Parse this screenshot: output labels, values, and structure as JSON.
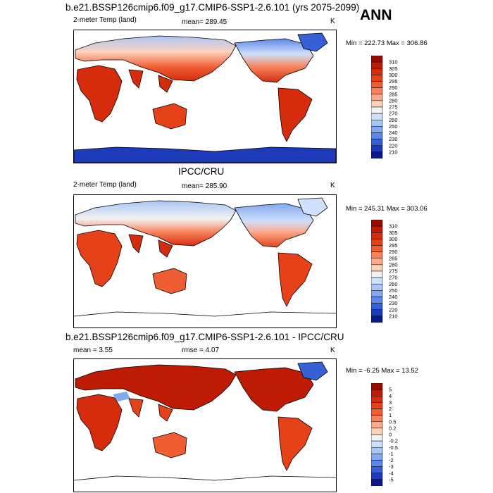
{
  "season": "ANN",
  "panels": [
    {
      "id": "model",
      "title": "b.e21.BSSP126cmip6.f09_g17.CMIP6-SSP1-2.6.101 (yrs 2075-2099)",
      "left_label": "2-meter Temp (land)",
      "center_label": "mean= 289.45",
      "units": "K",
      "minmax": "Min = 222.73 Max = 306.86",
      "colorbar_labels": [
        "310",
        "305",
        "300",
        "295",
        "290",
        "285",
        "280",
        "275",
        "270",
        "260",
        "250",
        "240",
        "230",
        "220",
        "210"
      ],
      "colorbar_colors": [
        "#9b0a02",
        "#be1b05",
        "#d52c0d",
        "#e54219",
        "#ef5d33",
        "#f7825a",
        "#fba98a",
        "#fdd2bd",
        "#f2f2f2",
        "#cfe0fb",
        "#a9c6f7",
        "#83a8f0",
        "#5c87e8",
        "#3760d6",
        "#1d3ab8",
        "#0a1a8e"
      ]
    },
    {
      "id": "obs",
      "title": "IPCC/CRU",
      "left_label": "2-meter Temp (land)",
      "center_label": "mean= 285.90",
      "units": "K",
      "minmax": "Min = 245.31 Max = 303.06",
      "colorbar_labels": [
        "310",
        "305",
        "300",
        "295",
        "290",
        "285",
        "280",
        "275",
        "270",
        "260",
        "250",
        "240",
        "230",
        "220",
        "210"
      ],
      "colorbar_colors": [
        "#9b0a02",
        "#be1b05",
        "#d52c0d",
        "#e54219",
        "#ef5d33",
        "#f7825a",
        "#fba98a",
        "#fdd2bd",
        "#f2f2f2",
        "#cfe0fb",
        "#a9c6f7",
        "#83a8f0",
        "#5c87e8",
        "#3760d6",
        "#1d3ab8",
        "#0a1a8e"
      ]
    },
    {
      "id": "diff",
      "title": "b.e21.BSSP126cmip6.f09_g17.CMIP6-SSP1-2.6.101 - IPCC/CRU",
      "left_label": "mean =   3.55",
      "center_label": "rmse =   4.07",
      "units": "K",
      "minmax": "Min =  -6.25 Max =  13.52",
      "colorbar_labels": [
        "5",
        "4",
        "3",
        "2",
        "1",
        "0.5",
        "0.2",
        "0",
        "-0.2",
        "-0.5",
        "-1",
        "-2",
        "-3",
        "-4",
        "-5"
      ],
      "colorbar_colors": [
        "#9b0a02",
        "#be1b05",
        "#d52c0d",
        "#e54219",
        "#ef5d33",
        "#f7825a",
        "#fba98a",
        "#fdd2bd",
        "#f2f2f2",
        "#cfe0fb",
        "#a9c6f7",
        "#83a8f0",
        "#5c87e8",
        "#3760d6",
        "#1d3ab8",
        "#0a1a8e"
      ]
    }
  ],
  "chart_data": [
    {
      "type": "heatmap",
      "title": "b.e21.BSSP126cmip6.f09_g17.CMIP6-SSP1-2.6.101 (yrs 2075-2099)",
      "variable": "2-meter Temp (land)",
      "units": "K",
      "mean": 289.45,
      "min": 222.73,
      "max": 306.86,
      "levels": [
        210,
        220,
        230,
        240,
        250,
        260,
        270,
        275,
        280,
        285,
        290,
        295,
        300,
        305,
        310
      ]
    },
    {
      "type": "heatmap",
      "title": "IPCC/CRU",
      "variable": "2-meter Temp (land)",
      "units": "K",
      "mean": 285.9,
      "min": 245.31,
      "max": 303.06,
      "levels": [
        210,
        220,
        230,
        240,
        250,
        260,
        270,
        275,
        280,
        285,
        290,
        295,
        300,
        305,
        310
      ]
    },
    {
      "type": "heatmap",
      "title": "b.e21.BSSP126cmip6.f09_g17.CMIP6-SSP1-2.6.101 - IPCC/CRU",
      "units": "K",
      "mean": 3.55,
      "rmse": 4.07,
      "min": -6.25,
      "max": 13.52,
      "levels": [
        -5,
        -4,
        -3,
        -2,
        -1,
        -0.5,
        -0.2,
        0,
        0.2,
        0.5,
        1,
        2,
        3,
        4,
        5
      ]
    }
  ]
}
